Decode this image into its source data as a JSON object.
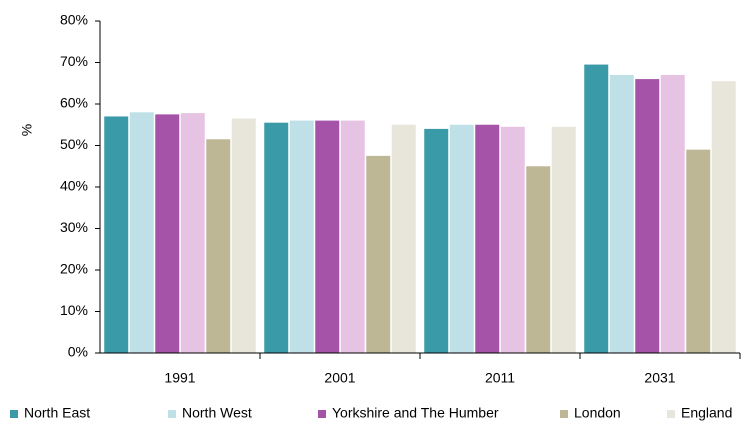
{
  "chart_data": {
    "type": "bar",
    "y_label": "%",
    "categories": [
      "1991",
      "2001",
      "2011",
      "2031"
    ],
    "series": [
      {
        "name": "North East",
        "color": "#3a9aa8",
        "values": [
          57,
          55.5,
          54,
          69.5
        ]
      },
      {
        "name": "North West",
        "color": "#bfe0e6",
        "values": [
          58,
          56,
          55,
          67
        ]
      },
      {
        "name": "Yorkshire and The Humber",
        "color": "#a453a8",
        "values": [
          57.5,
          56,
          55,
          66
        ]
      },
      {
        "color": "#e6c3e3",
        "values": [
          57.8,
          56,
          54.5,
          67
        ]
      },
      {
        "name": "London",
        "color": "#bdb795",
        "values": [
          51.5,
          47.5,
          45,
          49
        ]
      },
      {
        "name": "England",
        "color": "#e8e6da",
        "values": [
          56.5,
          55,
          54.5,
          65.5
        ]
      }
    ],
    "ylim": [
      0,
      80
    ],
    "yticks": [
      {
        "value": 0,
        "label": "0%"
      },
      {
        "value": 10,
        "label": "10%"
      },
      {
        "value": 20,
        "label": "20%"
      },
      {
        "value": 30,
        "label": "30%"
      },
      {
        "value": 40,
        "label": "40%"
      },
      {
        "value": 50,
        "label": "50%"
      },
      {
        "value": 60,
        "label": "60%"
      },
      {
        "value": 70,
        "label": "70%"
      },
      {
        "value": 80,
        "label": "80%"
      }
    ],
    "grid": false,
    "legend": "bottom"
  }
}
